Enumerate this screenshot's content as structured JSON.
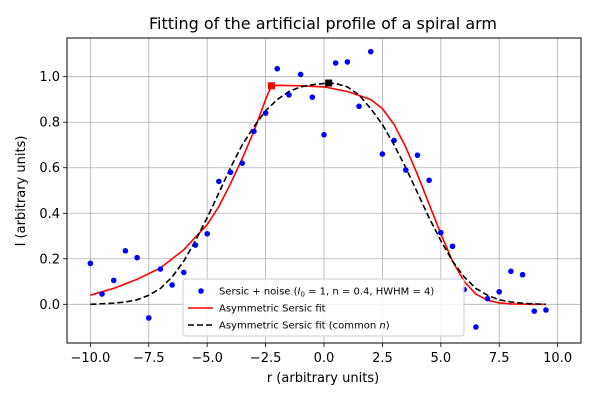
{
  "chart_data": {
    "type": "scatter",
    "title": "Fitting of the artificial profile of a spiral arm",
    "xlabel": "r (arbitrary units)",
    "ylabel": "I (arbitrary units)",
    "xlim": [
      -11.0,
      11.0
    ],
    "ylim": [
      -0.17,
      1.17
    ],
    "x_ticks": [
      -10,
      -7.5,
      -5,
      -2.5,
      0,
      2.5,
      5,
      7.5,
      10
    ],
    "x_tick_labels": [
      "−10.0",
      "−7.5",
      "−5.0",
      "−2.5",
      "0.0",
      "2.5",
      "5.0",
      "7.5",
      "10.0"
    ],
    "y_ticks": [
      0.0,
      0.2,
      0.4,
      0.6,
      0.8,
      1.0
    ],
    "y_tick_labels": [
      "0.0",
      "0.2",
      "0.4",
      "0.6",
      "0.8",
      "1.0"
    ],
    "grid": true,
    "legend_position": "lower-center",
    "series": [
      {
        "name": "Sersic + noise (I₀ = 1, n = 0.4, HWHM = 4)",
        "kind": "scatter",
        "color": "#0000ff",
        "x": [
          -10,
          -9.5,
          -9,
          -8.5,
          -8,
          -7.5,
          -7,
          -6.5,
          -6,
          -5.5,
          -5,
          -4.5,
          -4,
          -3.5,
          -3,
          -2.5,
          -2,
          -1.5,
          -1,
          -0.5,
          0,
          0.5,
          1,
          1.5,
          2,
          2.5,
          3,
          3.5,
          4,
          4.5,
          5,
          5.5,
          6,
          6.5,
          7,
          7.5,
          8,
          8.5,
          9,
          9.5
        ],
        "y": [
          0.18,
          0.045,
          0.105,
          0.235,
          0.205,
          -0.06,
          0.155,
          0.085,
          0.14,
          0.26,
          0.31,
          0.54,
          0.58,
          0.62,
          0.76,
          0.84,
          1.035,
          0.92,
          1.01,
          0.91,
          0.745,
          1.06,
          1.065,
          0.87,
          1.11,
          0.66,
          0.72,
          0.59,
          0.655,
          0.545,
          0.315,
          0.255,
          0.065,
          -0.1,
          0.025,
          0.055,
          0.145,
          0.13,
          -0.03,
          -0.025
        ]
      },
      {
        "name": "Asymmetric Sersic fit",
        "kind": "line",
        "color": "#ff0000",
        "dash": "solid",
        "x": [
          -10,
          -9,
          -8,
          -7,
          -6,
          -5,
          -4.5,
          -4,
          -3.5,
          -3,
          -2.5,
          -2.25,
          -2,
          -1,
          0,
          1,
          2,
          2.5,
          3,
          3.5,
          4,
          4.5,
          5,
          5.5,
          6,
          6.5,
          7,
          7.5,
          8,
          8.5,
          9,
          9.5
        ],
        "y": [
          0.04,
          0.07,
          0.11,
          0.16,
          0.24,
          0.35,
          0.43,
          0.53,
          0.64,
          0.76,
          0.9,
          0.96,
          0.962,
          0.96,
          0.955,
          0.935,
          0.9,
          0.86,
          0.79,
          0.69,
          0.57,
          0.44,
          0.31,
          0.19,
          0.1,
          0.045,
          0.018,
          0.006,
          0.002,
          0.001,
          0.0,
          0.0
        ]
      },
      {
        "name": "Asymmetric Sersic fit (common n)",
        "kind": "line",
        "color": "#000000",
        "dash": "dashed",
        "x": [
          -10,
          -9,
          -8.5,
          -8,
          -7.5,
          -7,
          -6.5,
          -6,
          -5.5,
          -5,
          -4.5,
          -4,
          -3.5,
          -3,
          -2.5,
          -2,
          -1.5,
          -1,
          -0.5,
          0,
          0.2,
          0.5,
          1,
          1.5,
          2,
          2.5,
          3,
          3.5,
          4,
          4.5,
          5,
          5.5,
          6,
          6.5,
          7,
          7.5,
          8,
          8.5,
          9,
          9.5
        ],
        "y": [
          0.0,
          0.005,
          0.01,
          0.02,
          0.04,
          0.07,
          0.12,
          0.19,
          0.28,
          0.38,
          0.49,
          0.6,
          0.7,
          0.78,
          0.85,
          0.9,
          0.935,
          0.955,
          0.965,
          0.97,
          0.972,
          0.97,
          0.955,
          0.92,
          0.86,
          0.79,
          0.7,
          0.6,
          0.49,
          0.38,
          0.28,
          0.19,
          0.12,
          0.07,
          0.04,
          0.02,
          0.01,
          0.005,
          0.002,
          0.0
        ]
      }
    ],
    "markers": [
      {
        "series": "Asymmetric Sersic fit",
        "shape": "square",
        "color": "#ff0000",
        "x": -2.25,
        "y": 0.96
      },
      {
        "series": "Asymmetric Sersic fit (common n)",
        "shape": "square",
        "color": "#000000",
        "x": 0.2,
        "y": 0.972
      }
    ],
    "legend": [
      {
        "label_main": "Sersic + noise (",
        "label_italic": "I",
        "label_sub": "0",
        "label_rest": " = 1, n = 0.4, HWHM = 4)",
        "kind": "dot",
        "color": "#0000ff"
      },
      {
        "label_main": "Asymmetric Sersic fit",
        "label_italic": "",
        "label_sub": "",
        "label_rest": "",
        "kind": "solid",
        "color": "#ff0000"
      },
      {
        "label_main": "Asymmetric Sersic fit (common ",
        "label_italic": "n",
        "label_sub": "",
        "label_rest": ")",
        "kind": "dashed",
        "color": "#000000"
      }
    ]
  }
}
